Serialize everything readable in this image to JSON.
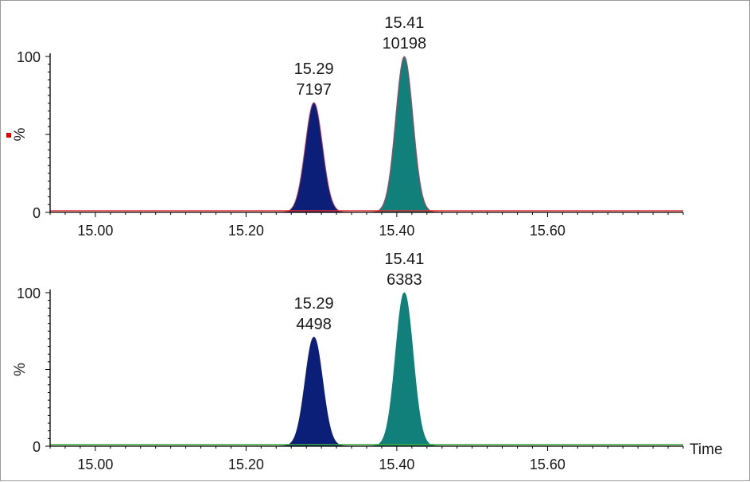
{
  "chart_data": [
    {
      "type": "area",
      "ylabel": "%",
      "xlabel": "",
      "xlim": [
        14.94,
        15.78
      ],
      "ylim": [
        0,
        100
      ],
      "x_ticks": [
        "15.00",
        "15.20",
        "15.40",
        "15.60"
      ],
      "y_ticks": [
        "0",
        "100"
      ],
      "baseline_color": "#e03030",
      "marker_color": "#e00000",
      "peaks": [
        {
          "rt": 15.29,
          "height_pct": 70,
          "area": "7197",
          "rt_label": "15.29",
          "area_label": "7197",
          "fill": "#0b1f78"
        },
        {
          "rt": 15.41,
          "height_pct": 100,
          "area": "10198",
          "rt_label": "15.41",
          "area_label": "10198",
          "fill": "#12807a"
        }
      ]
    },
    {
      "type": "area",
      "ylabel": "%",
      "xlabel": "Time",
      "xlim": [
        14.94,
        15.78
      ],
      "ylim": [
        0,
        100
      ],
      "x_ticks": [
        "15.00",
        "15.20",
        "15.40",
        "15.60"
      ],
      "y_ticks": [
        "0",
        "100"
      ],
      "baseline_color": "#3aa83a",
      "peaks": [
        {
          "rt": 15.29,
          "height_pct": 70,
          "area": "4498",
          "rt_label": "15.29",
          "area_label": "4498",
          "fill": "#0b1f78"
        },
        {
          "rt": 15.41,
          "height_pct": 100,
          "area": "6383",
          "rt_label": "15.41",
          "area_label": "6383",
          "fill": "#12807a"
        }
      ]
    }
  ]
}
